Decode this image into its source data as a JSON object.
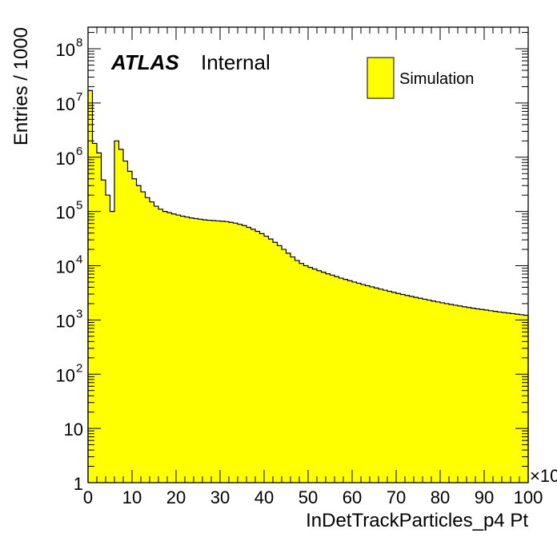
{
  "chart_data": {
    "type": "histogram",
    "title": "",
    "atlas_label": "ATLAS",
    "atlas_status": "Internal",
    "xlabel": "InDetTrackParticles_p4 Pt",
    "ylabel": "Entries / 1000",
    "x_multiplier": "×10",
    "xlim": [
      0,
      100
    ],
    "ylim": [
      1,
      250000000
    ],
    "yscale": "log",
    "fill_color": "#ffff00",
    "line_color": "#000000",
    "legend": {
      "placement": "top-right",
      "entries": [
        "Simulation"
      ]
    },
    "x_ticks": [
      "0",
      "10",
      "20",
      "30",
      "40",
      "50",
      "60",
      "70",
      "80",
      "90",
      "100"
    ],
    "y_ticks": [
      {
        "value": 1,
        "base": "1",
        "exp": ""
      },
      {
        "value": 10,
        "base": "10",
        "exp": ""
      },
      {
        "value": 100,
        "base": "10",
        "exp": "2"
      },
      {
        "value": 1000,
        "base": "10",
        "exp": "3"
      },
      {
        "value": 10000,
        "base": "10",
        "exp": "4"
      },
      {
        "value": 100000,
        "base": "10",
        "exp": "5"
      },
      {
        "value": 1000000,
        "base": "10",
        "exp": "6"
      },
      {
        "value": 10000000,
        "base": "10",
        "exp": "7"
      },
      {
        "value": 100000000,
        "base": "10",
        "exp": "8"
      }
    ],
    "bin_width": 1,
    "series": [
      {
        "name": "Simulation",
        "bin_edges_start": 0,
        "values": [
          17000000,
          1800000,
          1200000,
          380000,
          200000,
          100000,
          2000000,
          1400000,
          850000,
          550000,
          400000,
          300000,
          230000,
          180000,
          150000,
          125000,
          110000,
          100000,
          95000,
          90000,
          86000,
          82000,
          79000,
          76000,
          74000,
          72000,
          70000,
          69000,
          68000,
          67000,
          66000,
          65000,
          63000,
          61000,
          58000,
          55000,
          51000,
          47000,
          43000,
          39000,
          35000,
          31000,
          27000,
          23500,
          20000,
          17000,
          14500,
          12500,
          11000,
          10000,
          9300,
          8700,
          8100,
          7600,
          7100,
          6700,
          6300,
          5900,
          5600,
          5300,
          5000,
          4750,
          4500,
          4280,
          4080,
          3880,
          3700,
          3530,
          3370,
          3220,
          3080,
          2950,
          2830,
          2720,
          2610,
          2510,
          2410,
          2320,
          2230,
          2150,
          2070,
          2000,
          1930,
          1870,
          1810,
          1750,
          1700,
          1650,
          1600,
          1560,
          1520,
          1480,
          1440,
          1400,
          1370,
          1340,
          1310,
          1280,
          1250,
          1220
        ]
      }
    ]
  }
}
